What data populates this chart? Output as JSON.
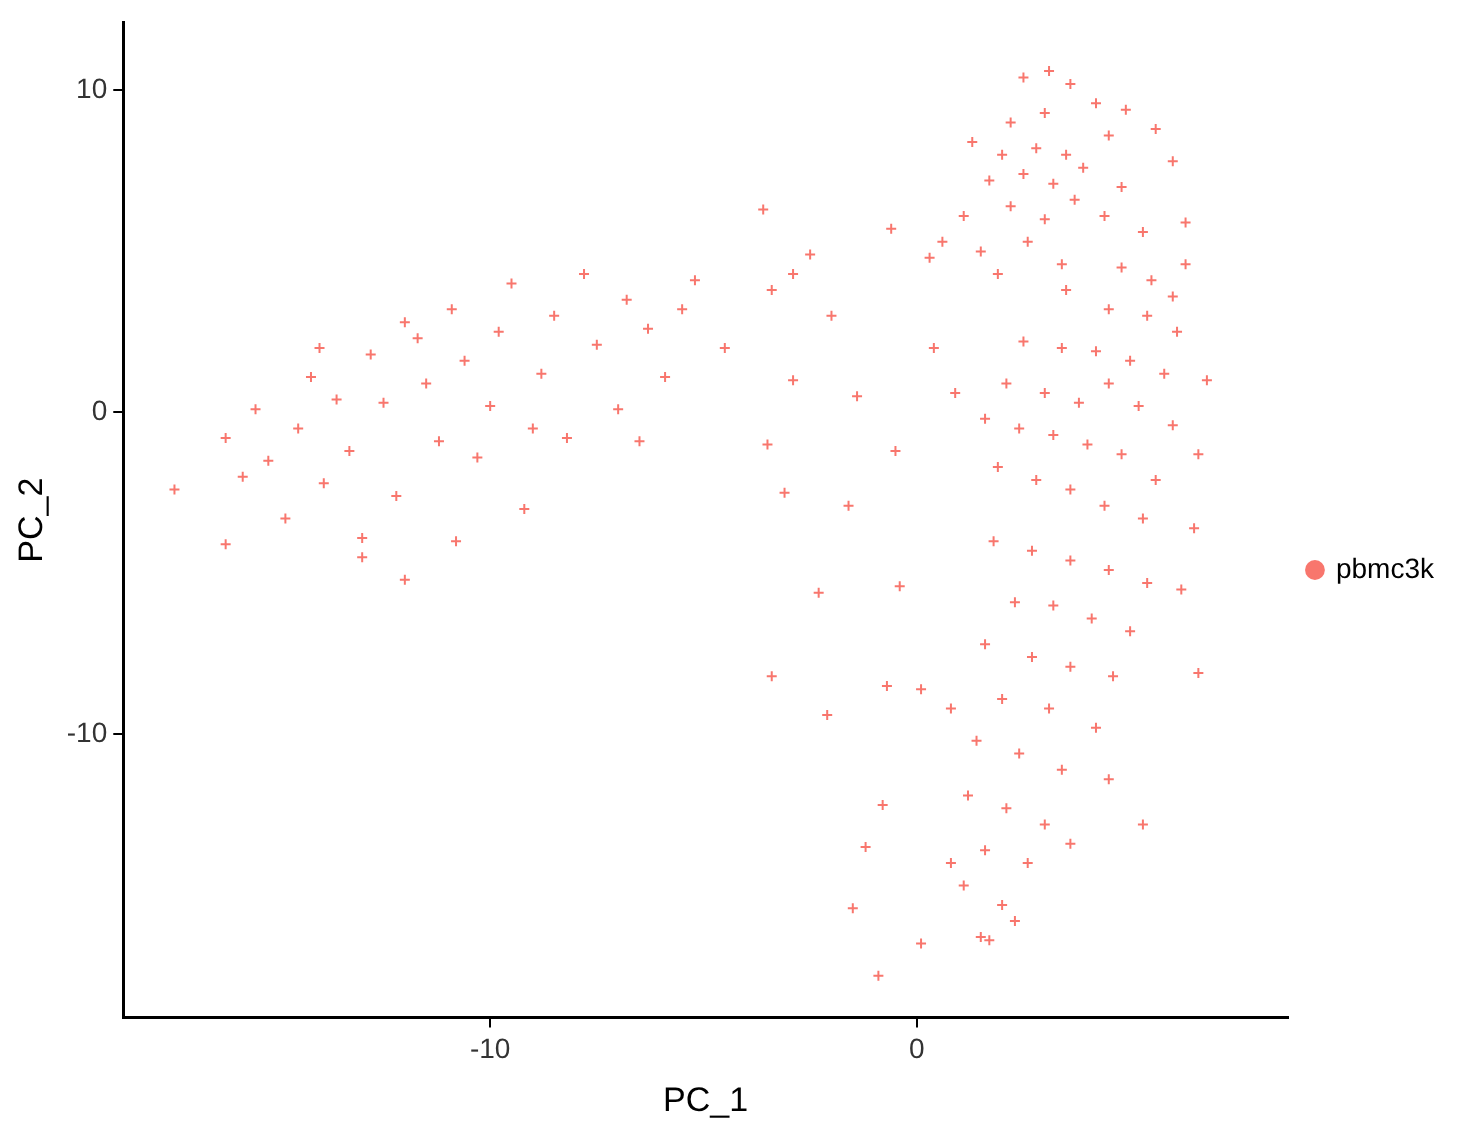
{
  "chart_data": {
    "type": "scatter",
    "xlabel": "PC_1",
    "ylabel": "PC_2",
    "xlim": [
      -18.6,
      8.7
    ],
    "ylim": [
      -18.8,
      12.1
    ],
    "xticks": [
      -10,
      0
    ],
    "yticks": [
      10,
      0,
      -10
    ],
    "grid": false,
    "legend": "right",
    "marker": "cross",
    "series": [
      {
        "name": "pbmc3k",
        "color": "#f8766d",
        "x": [
          -17.4,
          -16.2,
          -16.2,
          -15.5,
          -15.2,
          -14.8,
          -14.5,
          -14.2,
          -13.9,
          -13.6,
          -13.3,
          -13.0,
          -12.8,
          -12.5,
          -12.2,
          -12.0,
          -11.7,
          -11.5,
          -11.2,
          -10.9,
          -10.6,
          -10.3,
          -10.0,
          -9.8,
          -9.5,
          -9.2,
          -8.8,
          -8.5,
          -8.2,
          -7.8,
          -7.5,
          -7.0,
          -6.8,
          -6.3,
          -5.9,
          -5.5,
          -5.2,
          -4.5,
          -3.6,
          -3.4,
          -2.9,
          -2.5,
          -2.0,
          -13.0,
          -15.8,
          -10.8,
          -9.0,
          -6.5,
          -12.0,
          -14.0,
          -0.6,
          -3.5,
          -3.1,
          -1.6,
          -2.3,
          -3.4,
          -2.1,
          -0.8,
          -1.2,
          -1.5,
          -0.9,
          0.1,
          -0.4,
          -0.7,
          0.1,
          0.8,
          -2.9,
          -1.4,
          -0.5,
          2.5,
          3.1,
          3.6,
          2.2,
          3.0,
          4.2,
          4.9,
          1.3,
          2.0,
          2.8,
          3.5,
          4.5,
          5.6,
          1.7,
          2.5,
          3.2,
          3.9,
          4.8,
          6.0,
          1.1,
          2.2,
          3.0,
          3.7,
          4.4,
          5.3,
          0.6,
          1.5,
          2.6,
          3.4,
          0.3,
          6.3,
          1.9,
          4.8,
          5.5,
          6.3,
          3.5,
          4.5,
          5.4,
          6.1,
          6.8,
          2.5,
          3.4,
          4.2,
          5.0,
          5.8,
          2.1,
          3.0,
          3.8,
          4.5,
          5.2,
          6.0,
          6.6,
          1.6,
          2.4,
          3.2,
          4.0,
          4.8,
          5.6,
          1.9,
          2.8,
          3.6,
          4.4,
          5.3,
          6.5,
          0.9,
          0.4,
          6.2,
          6.0,
          1.8,
          2.7,
          3.6,
          4.5,
          5.4,
          2.3,
          3.2,
          4.1,
          5.0,
          1.6,
          2.7,
          3.6,
          4.6,
          6.6,
          2.0,
          3.1,
          4.2,
          1.4,
          2.4,
          3.4,
          4.5,
          1.2,
          2.1,
          3.0,
          5.3,
          1.6,
          2.6,
          1.1,
          2.0,
          1.5,
          0.8,
          3.6,
          2.3,
          1.7
        ],
        "values": [
          -2.4,
          -0.8,
          -4.1,
          0.1,
          -1.5,
          -3.3,
          -0.5,
          1.1,
          -2.2,
          0.4,
          -1.2,
          -3.9,
          1.8,
          0.3,
          -2.6,
          -5.2,
          2.3,
          0.9,
          -0.9,
          3.2,
          1.6,
          -1.4,
          0.2,
          2.5,
          4.0,
          -3.0,
          1.2,
          3.0,
          -0.8,
          4.3,
          2.1,
          0.1,
          3.5,
          2.6,
          1.1,
          3.2,
          4.1,
          2.0,
          6.3,
          3.8,
          4.3,
          4.9,
          3.0,
          -4.5,
          -2.0,
          -4.0,
          -0.5,
          -0.9,
          2.8,
          2.0,
          5.7,
          -1.0,
          -2.5,
          -2.9,
          -5.6,
          -8.2,
          -9.4,
          -12.2,
          -13.5,
          -15.4,
          -17.5,
          -16.5,
          -5.4,
          -8.5,
          -8.6,
          -9.2,
          1.0,
          0.5,
          -1.2,
          10.4,
          10.6,
          10.2,
          9.0,
          9.3,
          9.6,
          9.4,
          8.4,
          8.0,
          8.2,
          8.0,
          8.6,
          8.8,
          7.2,
          7.4,
          7.1,
          7.6,
          7.0,
          7.8,
          6.1,
          6.4,
          6.0,
          6.6,
          6.1,
          5.6,
          5.3,
          5.0,
          5.3,
          4.6,
          4.8,
          5.9,
          4.3,
          4.5,
          4.1,
          4.6,
          3.8,
          3.2,
          3.0,
          2.5,
          1.0,
          2.2,
          2.0,
          1.9,
          1.6,
          1.2,
          0.9,
          0.6,
          0.3,
          0.9,
          0.2,
          -0.4,
          -1.3,
          -0.2,
          -0.5,
          -0.7,
          -1.0,
          -1.3,
          -2.1,
          -1.7,
          -2.1,
          -2.4,
          -2.9,
          -3.3,
          -3.6,
          0.6,
          2.0,
          -5.5,
          3.6,
          -4.0,
          -4.3,
          -4.6,
          -4.9,
          -5.3,
          -5.9,
          -6.0,
          -6.4,
          -6.8,
          -7.2,
          -7.6,
          -7.9,
          -8.2,
          -8.1,
          -8.9,
          -9.2,
          -9.8,
          -10.2,
          -10.6,
          -11.1,
          -11.4,
          -11.9,
          -12.3,
          -12.8,
          -12.8,
          -13.6,
          -14.0,
          -14.7,
          -15.3,
          -16.3,
          -14.0,
          -13.4,
          -15.8,
          -16.4
        ]
      }
    ]
  }
}
